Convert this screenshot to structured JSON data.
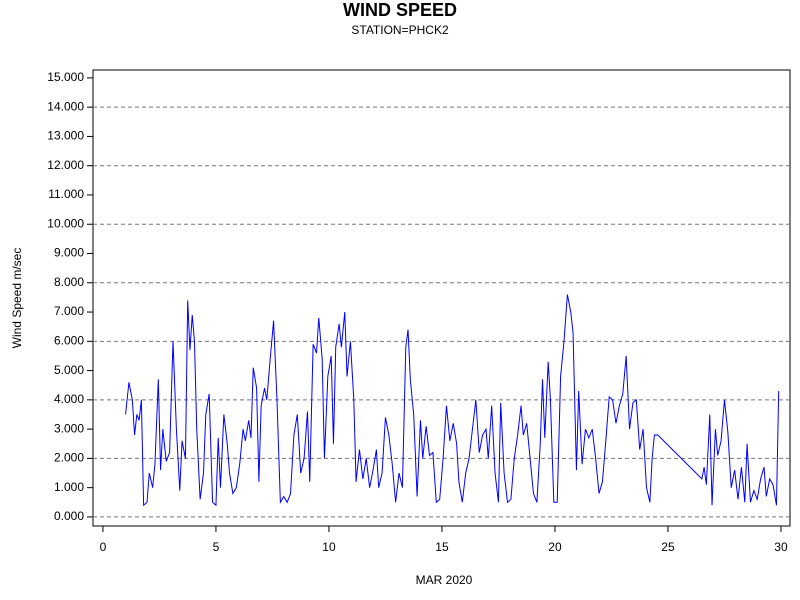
{
  "chart_data": {
    "type": "line",
    "title": "WIND SPEED",
    "subtitle": "STATION=PHCK2",
    "xlabel": "MAR 2020",
    "ylabel": "Wind Speed m/sec",
    "color": "#0000ff",
    "xlim": [
      -0.44,
      30.4
    ],
    "ylim": [
      -0.31,
      15.27
    ],
    "xticks": [
      0,
      5,
      10,
      15,
      20,
      25,
      30
    ],
    "yticks": [
      {
        "value": 0,
        "label": "0.000"
      },
      {
        "value": 1,
        "label": "1.000"
      },
      {
        "value": 2,
        "label": "2.000"
      },
      {
        "value": 3,
        "label": "3.000"
      },
      {
        "value": 4,
        "label": "4.000"
      },
      {
        "value": 5,
        "label": "5.000"
      },
      {
        "value": 6,
        "label": "6.000"
      },
      {
        "value": 7,
        "label": "7.000"
      },
      {
        "value": 8,
        "label": "8.000"
      },
      {
        "value": 9,
        "label": "9.000"
      },
      {
        "value": 10,
        "label": "10.000"
      },
      {
        "value": 11,
        "label": "11.000"
      },
      {
        "value": 12,
        "label": "12.000"
      },
      {
        "value": 13,
        "label": "13.000"
      },
      {
        "value": 14,
        "label": "14.000"
      },
      {
        "value": 15,
        "label": "15.000"
      }
    ],
    "ygrid": [
      0,
      2,
      4,
      6,
      8,
      10,
      12,
      14
    ],
    "x": [
      1.0,
      1.15,
      1.3,
      1.4,
      1.5,
      1.6,
      1.7,
      1.8,
      1.95,
      2.05,
      2.2,
      2.3,
      2.45,
      2.55,
      2.65,
      2.8,
      2.95,
      3.1,
      3.25,
      3.4,
      3.5,
      3.65,
      3.75,
      3.85,
      3.95,
      4.05,
      4.15,
      4.3,
      4.45,
      4.55,
      4.7,
      4.85,
      5.0,
      5.1,
      5.2,
      5.35,
      5.5,
      5.6,
      5.75,
      5.9,
      6.05,
      6.2,
      6.3,
      6.45,
      6.55,
      6.65,
      6.8,
      6.9,
      7.0,
      7.15,
      7.25,
      7.4,
      7.55,
      7.7,
      7.85,
      8.0,
      8.15,
      8.3,
      8.45,
      8.6,
      8.75,
      8.9,
      9.05,
      9.15,
      9.3,
      9.45,
      9.55,
      9.7,
      9.8,
      9.95,
      10.1,
      10.2,
      10.3,
      10.45,
      10.55,
      10.7,
      10.8,
      10.95,
      11.1,
      11.2,
      11.35,
      11.5,
      11.65,
      11.8,
      11.95,
      12.1,
      12.2,
      12.35,
      12.5,
      12.65,
      12.8,
      12.95,
      13.1,
      13.25,
      13.4,
      13.5,
      13.6,
      13.75,
      13.9,
      14.05,
      14.15,
      14.3,
      14.45,
      14.6,
      14.75,
      14.9,
      15.05,
      15.2,
      15.35,
      15.5,
      15.65,
      15.75,
      15.9,
      16.05,
      16.2,
      16.35,
      16.5,
      16.65,
      16.8,
      16.95,
      17.05,
      17.2,
      17.35,
      17.5,
      17.6,
      17.75,
      17.9,
      18.05,
      18.2,
      18.35,
      18.5,
      18.6,
      18.75,
      18.9,
      19.05,
      19.2,
      19.35,
      19.45,
      19.55,
      19.7,
      19.8,
      19.95,
      20.1,
      20.25,
      20.4,
      20.55,
      20.7,
      20.8,
      20.95,
      21.05,
      21.2,
      21.35,
      21.5,
      21.65,
      21.8,
      21.95,
      22.1,
      22.25,
      22.4,
      22.55,
      22.7,
      22.85,
      23.0,
      23.15,
      23.3,
      23.45,
      23.6,
      23.75,
      23.9,
      24.05,
      24.2,
      24.3,
      24.4,
      24.55,
      26.5,
      26.6,
      26.7,
      26.85,
      26.95,
      27.1,
      27.2,
      27.35,
      27.5,
      27.65,
      27.8,
      27.95,
      28.1,
      28.25,
      28.4,
      28.5,
      28.65,
      28.8,
      28.95,
      29.1,
      29.25,
      29.35,
      29.5,
      29.65,
      29.8,
      29.9
    ],
    "values": [
      3.5,
      4.6,
      4.0,
      2.8,
      3.5,
      3.3,
      4.0,
      0.4,
      0.5,
      1.5,
      1.0,
      1.8,
      4.7,
      1.6,
      3.0,
      1.9,
      2.2,
      6.0,
      3.0,
      0.9,
      2.6,
      2.0,
      7.4,
      5.7,
      6.9,
      6.0,
      3.0,
      0.6,
      1.5,
      3.5,
      4.2,
      0.5,
      0.4,
      2.7,
      1.0,
      3.5,
      2.5,
      1.5,
      0.8,
      1.0,
      1.8,
      3.0,
      2.6,
      3.3,
      2.7,
      5.1,
      4.4,
      1.2,
      3.8,
      4.4,
      4.0,
      5.4,
      6.7,
      4.0,
      0.5,
      0.7,
      0.5,
      0.8,
      2.8,
      3.5,
      1.5,
      2.0,
      3.6,
      1.2,
      5.9,
      5.6,
      6.8,
      5.4,
      2.0,
      4.8,
      5.5,
      2.5,
      5.8,
      6.6,
      5.8,
      7.0,
      4.8,
      6.0,
      4.0,
      1.2,
      2.3,
      1.3,
      2.0,
      1.0,
      1.6,
      2.3,
      1.0,
      1.5,
      3.4,
      2.8,
      1.8,
      0.5,
      1.5,
      1.0,
      5.8,
      6.4,
      4.7,
      3.5,
      0.7,
      3.3,
      2.0,
      3.1,
      2.1,
      2.2,
      0.5,
      0.6,
      2.0,
      3.8,
      2.6,
      3.2,
      2.5,
      1.2,
      0.5,
      1.5,
      2.0,
      3.0,
      4.0,
      2.2,
      2.8,
      3.0,
      2.0,
      3.8,
      1.5,
      0.5,
      3.9,
      1.5,
      0.5,
      0.6,
      2.0,
      2.8,
      3.8,
      2.8,
      3.2,
      2.0,
      0.8,
      0.5,
      2.5,
      4.7,
      2.7,
      5.3,
      4.0,
      0.5,
      0.5,
      4.8,
      6.0,
      7.6,
      7.0,
      6.3,
      1.6,
      4.3,
      1.8,
      3.0,
      2.7,
      3.0,
      2.0,
      0.8,
      1.2,
      2.6,
      4.1,
      4.0,
      3.2,
      3.8,
      4.2,
      5.5,
      3.0,
      3.9,
      4.0,
      2.3,
      3.0,
      1.0,
      0.5,
      2.0,
      2.8,
      2.8,
      1.3,
      1.7,
      1.1,
      3.5,
      0.4,
      3.0,
      2.1,
      2.6,
      4.0,
      2.9,
      1.0,
      1.6,
      0.6,
      1.7,
      0.5,
      2.5,
      0.5,
      0.9,
      0.6,
      1.3,
      1.7,
      0.7,
      1.3,
      1.1,
      0.4,
      4.3
    ]
  }
}
